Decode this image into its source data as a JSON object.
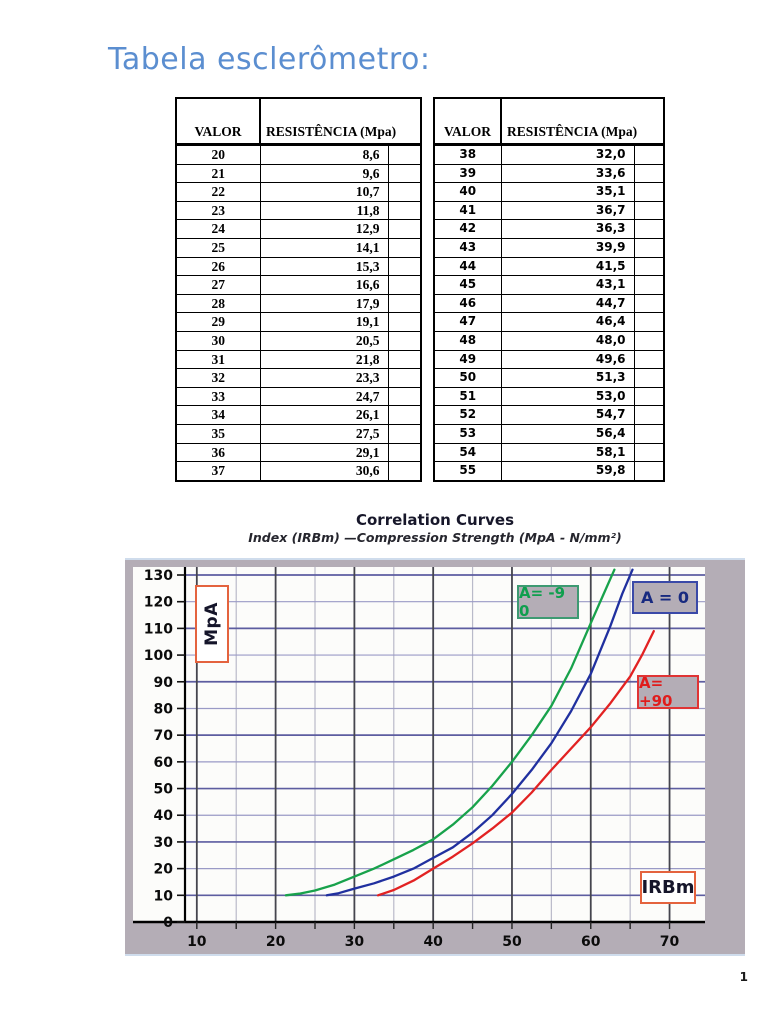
{
  "title": "Tabela esclerômetro:",
  "page_number": "1",
  "colors": {
    "title_blue": "#5b8ed0",
    "chart_background": "#b4adb6",
    "plot_background": "#fcfcfa",
    "axis_box_border": "#e4633e"
  },
  "tables": {
    "columns": [
      "VALOR",
      "RESISTÊNCIA (Mpa)"
    ],
    "left": {
      "rows": [
        [
          "20",
          "8,6"
        ],
        [
          "21",
          "9,6"
        ],
        [
          "22",
          "10,7"
        ],
        [
          "23",
          "11,8"
        ],
        [
          "24",
          "12,9"
        ],
        [
          "25",
          "14,1"
        ],
        [
          "26",
          "15,3"
        ],
        [
          "27",
          "16,6"
        ],
        [
          "28",
          "17,9"
        ],
        [
          "29",
          "19,1"
        ],
        [
          "30",
          "20,5"
        ],
        [
          "31",
          "21,8"
        ],
        [
          "32",
          "23,3"
        ],
        [
          "33",
          "24,7"
        ],
        [
          "34",
          "26,1"
        ],
        [
          "35",
          "27,5"
        ],
        [
          "36",
          "29,1"
        ],
        [
          "37",
          "30,6"
        ]
      ]
    },
    "right": {
      "rows": [
        [
          "38",
          "32,0"
        ],
        [
          "39",
          "33,6"
        ],
        [
          "40",
          "35,1"
        ],
        [
          "41",
          "36,7"
        ],
        [
          "42",
          "36,3"
        ],
        [
          "43",
          "39,9"
        ],
        [
          "44",
          "41,5"
        ],
        [
          "45",
          "43,1"
        ],
        [
          "46",
          "44,7"
        ],
        [
          "47",
          "46,4"
        ],
        [
          "48",
          "48,0"
        ],
        [
          "49",
          "49,6"
        ],
        [
          "50",
          "51,3"
        ],
        [
          "51",
          "53,0"
        ],
        [
          "52",
          "54,7"
        ],
        [
          "53",
          "56,4"
        ],
        [
          "54",
          "58,1"
        ],
        [
          "55",
          "59,8"
        ]
      ]
    }
  },
  "chart_data": {
    "type": "line",
    "title": "Correlation Curves",
    "subtitle": "Index (IRBm) —Compression Strength (MpA - N/mm²)",
    "xlabel": "IRBm",
    "ylabel": "MpA",
    "xlim": [
      8.5,
      74.5
    ],
    "ylim": [
      0,
      133
    ],
    "x_ticks": [
      10,
      20,
      30,
      40,
      50,
      60,
      70
    ],
    "x_minor_step": 5,
    "y_ticks": [
      0,
      10,
      20,
      30,
      40,
      50,
      60,
      70,
      80,
      90,
      100,
      110,
      120,
      130
    ],
    "grid": "on",
    "legend_position": "top-right",
    "series": [
      {
        "name": "A= -9 0",
        "color": "#18a24b",
        "legend_border": "#3d9a72",
        "legend_text": "#0f9f4e",
        "points": [
          [
            21.3,
            10
          ],
          [
            23,
            10.6
          ],
          [
            25,
            11.8
          ],
          [
            27.5,
            14
          ],
          [
            30,
            17
          ],
          [
            32.5,
            20
          ],
          [
            35,
            23.5
          ],
          [
            37.5,
            27
          ],
          [
            40,
            31
          ],
          [
            42.5,
            36.5
          ],
          [
            45,
            43
          ],
          [
            47.5,
            51
          ],
          [
            50,
            60
          ],
          [
            52.5,
            70
          ],
          [
            55,
            81
          ],
          [
            57.5,
            95
          ],
          [
            60,
            112
          ],
          [
            61.5,
            122
          ],
          [
            63,
            132
          ]
        ]
      },
      {
        "name": "A = 0",
        "color": "#20309f",
        "legend_border": "#3a49a8",
        "legend_text": "#182a80",
        "points": [
          [
            26.5,
            10
          ],
          [
            28,
            10.8
          ],
          [
            30,
            12.5
          ],
          [
            32.5,
            14.5
          ],
          [
            35,
            17
          ],
          [
            37.5,
            20
          ],
          [
            40,
            24
          ],
          [
            42.5,
            28
          ],
          [
            45,
            33.5
          ],
          [
            47.5,
            40
          ],
          [
            50,
            48
          ],
          [
            52.5,
            57
          ],
          [
            55,
            67
          ],
          [
            57.5,
            79
          ],
          [
            60,
            93
          ],
          [
            62.5,
            111
          ],
          [
            64,
            123
          ],
          [
            65.3,
            132
          ]
        ]
      },
      {
        "name": "A= +90",
        "color": "#e22222",
        "legend_border": "#e03434",
        "legend_text": "#e01c1c",
        "points": [
          [
            33,
            10
          ],
          [
            35,
            12
          ],
          [
            37.5,
            15.5
          ],
          [
            40,
            20
          ],
          [
            42.5,
            24.5
          ],
          [
            45,
            29.5
          ],
          [
            47.5,
            35
          ],
          [
            50,
            41
          ],
          [
            52.5,
            48.5
          ],
          [
            55,
            57
          ],
          [
            57.5,
            65
          ],
          [
            60,
            73
          ],
          [
            62.5,
            82
          ],
          [
            65,
            92
          ],
          [
            66.5,
            100
          ],
          [
            68,
            109
          ]
        ]
      }
    ]
  }
}
